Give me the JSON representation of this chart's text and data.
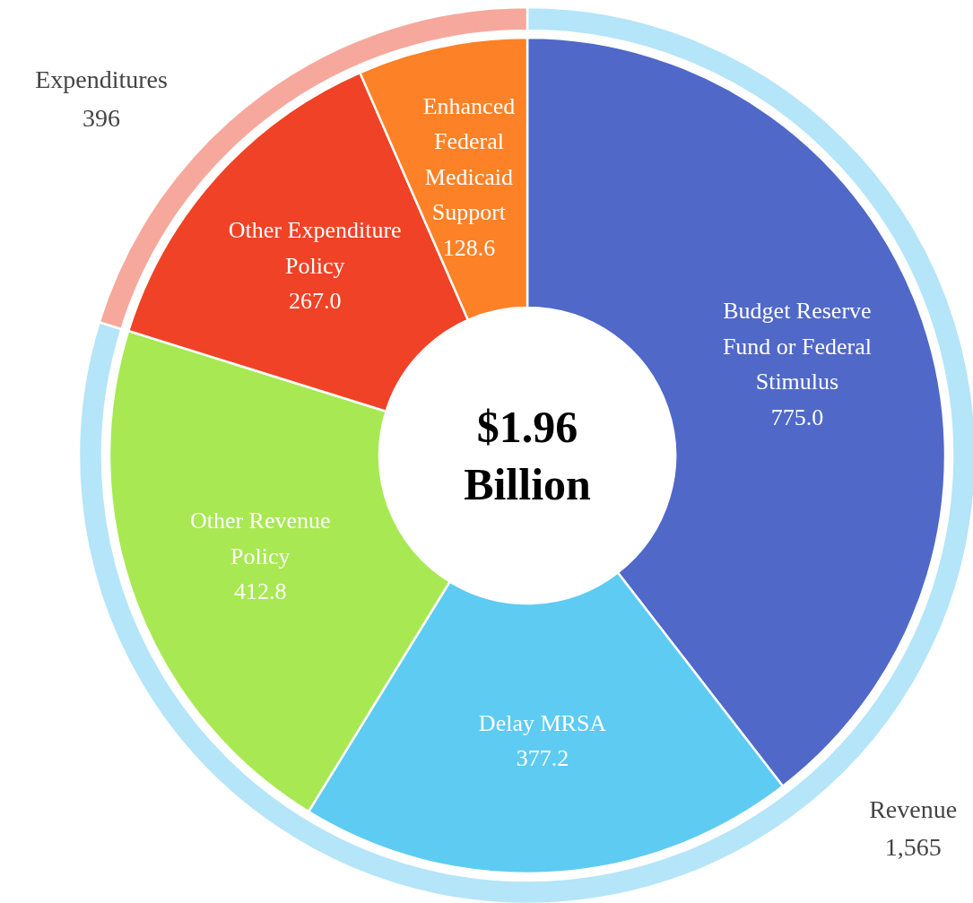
{
  "chart_data": [
    {
      "type": "donut",
      "title": "$1.96 Billion",
      "categories": [
        "Budget Reserve Fund or Federal Stimulus",
        "Delay MRSA",
        "Other Revenue Policy",
        "Other Expenditure Policy",
        "Enhanced Federal Medicaid Support"
      ],
      "values": [
        775.0,
        377.2,
        412.8,
        267.0,
        128.6
      ],
      "value_labels": [
        "775.0",
        "377.2",
        "412.8",
        "267.0",
        "128.6"
      ],
      "colors": [
        "#5068c8",
        "#5ecbf2",
        "#a8e853",
        "#f04226",
        "#fd8126"
      ]
    },
    {
      "type": "donut",
      "categories": [
        "Revenue",
        "Expenditures"
      ],
      "values": [
        1565,
        396
      ],
      "value_labels": [
        "1,565",
        "396"
      ],
      "colors": [
        "#b4e5f8",
        "#f7a89c"
      ]
    }
  ]
}
